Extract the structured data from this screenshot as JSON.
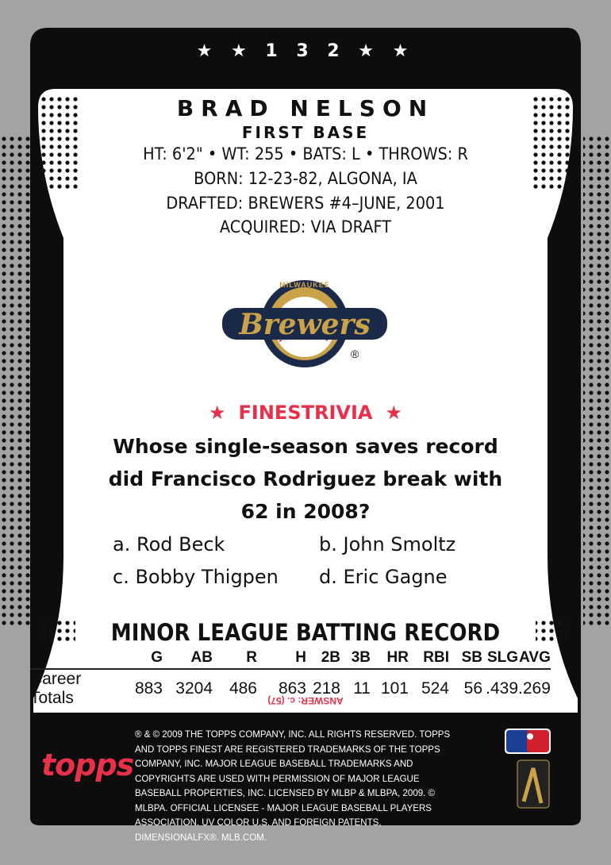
{
  "card": {
    "number": "★ ★ 1 3 2 ★ ★",
    "player_name": "BRAD NELSON",
    "position": "FIRST BASE",
    "bio": [
      "HT: 6'2\" • WT: 255 • BATS: L • THROWS: R",
      "BORN: 12-23-82, ALGONA, IA",
      "DRAFTED: BREWERS #4–JUNE, 2001",
      "ACQUIRED: VIA DRAFT"
    ],
    "team_logo": {
      "arc_text": "MILWAUKEE",
      "wordmark": "Brewers",
      "registered": "®"
    }
  },
  "trivia": {
    "heading": "FINESTRIVIA",
    "star": "★",
    "question_lines": [
      "Whose single-season saves record",
      "did Francisco Rodriguez break with",
      "62 in 2008?"
    ],
    "options": [
      "a. Rod Beck",
      "b. John Smoltz",
      "c. Bobby Thigpen",
      "d. Eric Gagne"
    ],
    "answer": "ANSWER: c. (57)"
  },
  "record": {
    "title": "MINOR LEAGUE BATTING RECORD",
    "columns": [
      "",
      "G",
      "AB",
      "R",
      "H",
      "2B",
      "3B",
      "HR",
      "RBI",
      "SB",
      "SLG",
      "AVG"
    ],
    "row": [
      "Career Totals",
      "883",
      "3204",
      "486",
      "863",
      "218",
      "11",
      "101",
      "524",
      "56",
      ".439",
      ".269"
    ]
  },
  "footer": {
    "brand": "topps",
    "legal": "® & © 2009 THE TOPPS COMPANY, INC. ALL RIGHTS RESERVED. TOPPS AND TOPPS FINEST ARE REGISTERED TRADEMARKS OF THE TOPPS COMPANY, INC. MAJOR LEAGUE BASEBALL TRADEMARKS AND COPYRIGHTS ARE USED WITH PERMISSION OF MAJOR LEAGUE BASEBALL PROPERTIES, INC. LICENSED BY MLBP & MLBPA, 2009. © MLBPA. OFFICIAL LICENSEE - MAJOR LEAGUE BASEBALL PLAYERS ASSOCIATION. UV COLOR U.S. AND FOREIGN PATENTS, DIMENSIONALFX®. MLB.COM."
  },
  "colors": {
    "background": "#a3a3a3",
    "frame": "#0d0d0d",
    "accent": "#e8304a",
    "navy": "#1c2a4a",
    "gold": "#c9a24a"
  }
}
